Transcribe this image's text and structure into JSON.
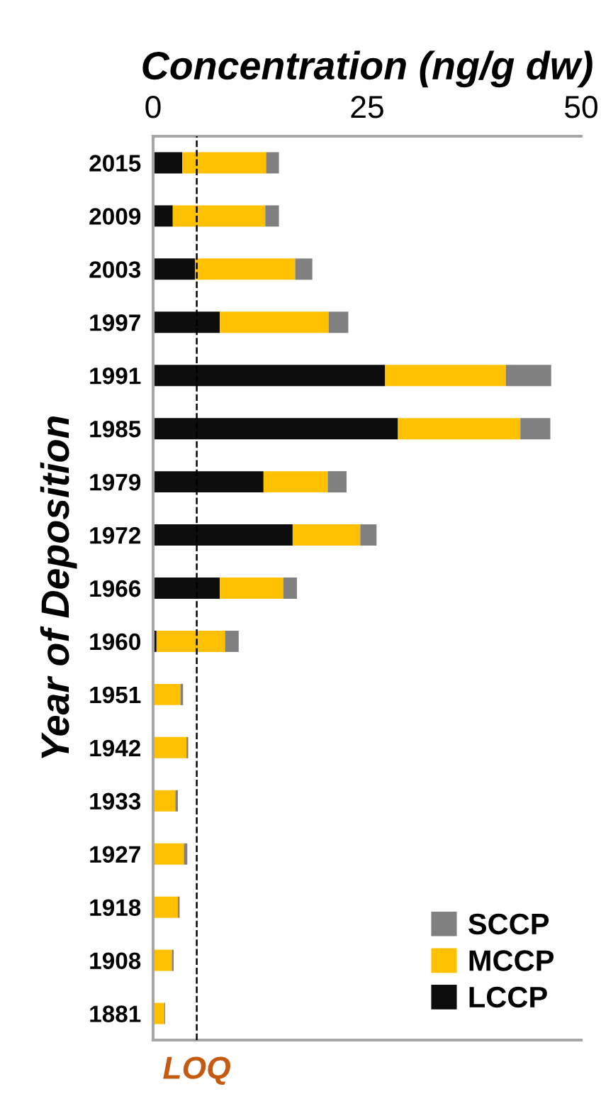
{
  "chart_data": {
    "type": "bar",
    "orientation": "horizontal",
    "stacked": true,
    "xlabel": "Concentration (ng/g dw)",
    "ylabel": "Year of Deposition",
    "categories": [
      "2015",
      "2009",
      "2003",
      "1997",
      "1991",
      "1985",
      "1979",
      "1972",
      "1966",
      "1960",
      "1951",
      "1942",
      "1933",
      "1927",
      "1918",
      "1908",
      "1881"
    ],
    "series": [
      {
        "name": "LCCP",
        "color": "#0d0d0d",
        "values": [
          3.4,
          2.3,
          4.9,
          7.8,
          27.1,
          28.6,
          12.9,
          16.3,
          7.8,
          0.4,
          0,
          0,
          0,
          0,
          0,
          0,
          0
        ]
      },
      {
        "name": "MCCP",
        "color": "#ffc000",
        "values": [
          9.8,
          10.8,
          11.7,
          12.7,
          14.1,
          14.3,
          7.5,
          7.9,
          7.4,
          8.0,
          3.2,
          3.9,
          2.6,
          3.6,
          2.9,
          2.2,
          1.3
        ]
      },
      {
        "name": "SCCP",
        "color": "#808080",
        "values": [
          1.5,
          1.6,
          2.0,
          2.3,
          5.3,
          3.5,
          2.2,
          1.9,
          1.6,
          1.6,
          0.3,
          0.2,
          0.3,
          0.4,
          0.2,
          0.2,
          0.1
        ]
      }
    ],
    "xlim": [
      0,
      50
    ],
    "xticks": [
      0,
      25,
      50
    ],
    "ref_lines": [
      {
        "axis": "x",
        "value": 5.1,
        "label": "LOQ",
        "color": "#000000",
        "line_style": "dashed"
      }
    ],
    "legend": "bottom right",
    "grid": false
  }
}
